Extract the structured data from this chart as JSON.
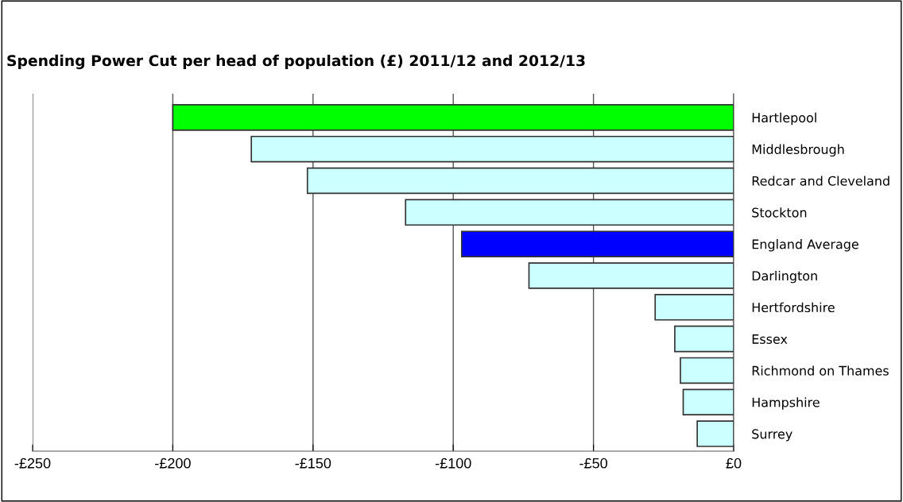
{
  "chart_data": {
    "type": "bar",
    "orientation": "horizontal",
    "title": "Spending Power Cut per head of population (£) 2011/12 and 2012/13",
    "categories": [
      "Hartlepool",
      "Middlesbrough",
      "Redcar and Cleveland",
      "Stockton",
      "England Average",
      "Darlington",
      "Hertfordshire",
      "Essex",
      "Richmond on Thames",
      "Hampshire",
      "Surrey"
    ],
    "values": [
      -200,
      -172,
      -152,
      -117,
      -97,
      -73,
      -28,
      -21,
      -19,
      -18,
      -13
    ],
    "colors": [
      "#00ff00",
      "#ccffff",
      "#ccffff",
      "#ccffff",
      "#0000ff",
      "#ccffff",
      "#ccffff",
      "#ccffff",
      "#ccffff",
      "#ccffff",
      "#ccffff"
    ],
    "xlim": [
      -250,
      0
    ],
    "xticks": [
      {
        "value": -250,
        "label": "-£250"
      },
      {
        "value": -200,
        "label": "-£200"
      },
      {
        "value": -150,
        "label": "-£150"
      },
      {
        "value": -100,
        "label": "-£100"
      },
      {
        "value": -50,
        "label": "-£50"
      },
      {
        "value": 0,
        "label": "£0"
      }
    ],
    "grid": "x",
    "legend": false
  }
}
